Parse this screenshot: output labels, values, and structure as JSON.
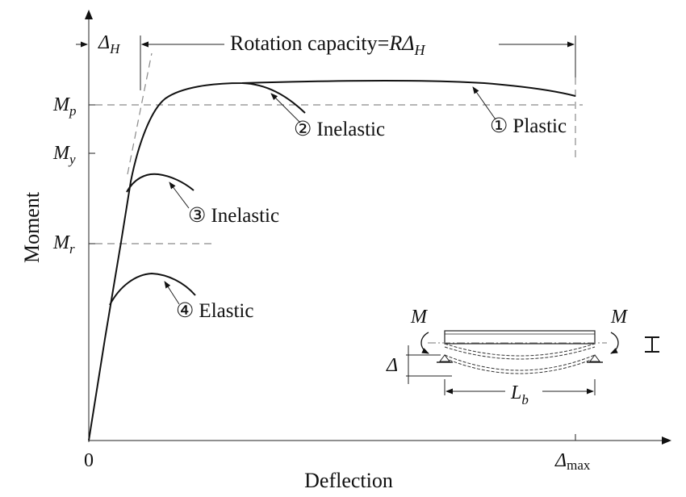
{
  "axes": {
    "y_label": "Moment",
    "x_label": "Deflection",
    "origin_label": "0",
    "x_max_label": {
      "symbol": "Δ",
      "sub": "max"
    }
  },
  "levels": {
    "mp": {
      "symbol": "M",
      "sub": "p"
    },
    "my": {
      "symbol": "M",
      "sub": "y"
    },
    "mr": {
      "symbol": "M",
      "sub": "r"
    }
  },
  "dimensions": {
    "delta_h": {
      "symbol": "Δ",
      "sub": "H"
    },
    "rotation": {
      "text": "Rotation capacity=",
      "symbol": "RΔ",
      "sub": "H"
    }
  },
  "curves": [
    {
      "number": "①",
      "label": "Plastic"
    },
    {
      "number": "②",
      "label": "Inelastic"
    },
    {
      "number": "③",
      "label": "Inelastic"
    },
    {
      "number": "④",
      "label": "Elastic"
    }
  ],
  "inset": {
    "moment_left": "M",
    "moment_right": "M",
    "delta": "Δ",
    "length": {
      "symbol": "L",
      "sub": "b"
    }
  },
  "colors": {
    "line": "#111111",
    "dashed": "#8a8a8a",
    "background": "#ffffff"
  }
}
